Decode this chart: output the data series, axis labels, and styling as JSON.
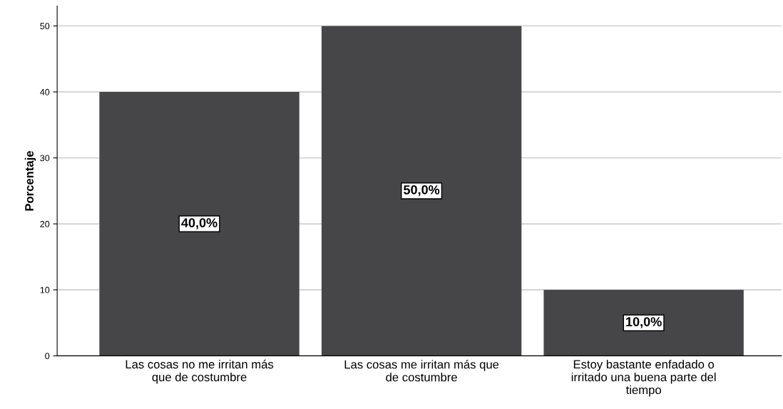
{
  "chart_data": {
    "type": "bar",
    "ylabel": "Porcentaje",
    "categories": [
      "Las cosas no me irritan más\nque de costumbre",
      "Las cosas me irritan más que\nde costumbre",
      "Estoy bastante enfadado o\nirritado una buena parte del\ntiempo"
    ],
    "values": [
      40,
      50,
      10
    ],
    "value_labels": [
      "40,0%",
      "50,0%",
      "10,0%"
    ],
    "color": "#464649",
    "ylim": [
      0,
      53
    ],
    "yticks": [
      0,
      10,
      20,
      30,
      40,
      50
    ],
    "grid": "y"
  }
}
